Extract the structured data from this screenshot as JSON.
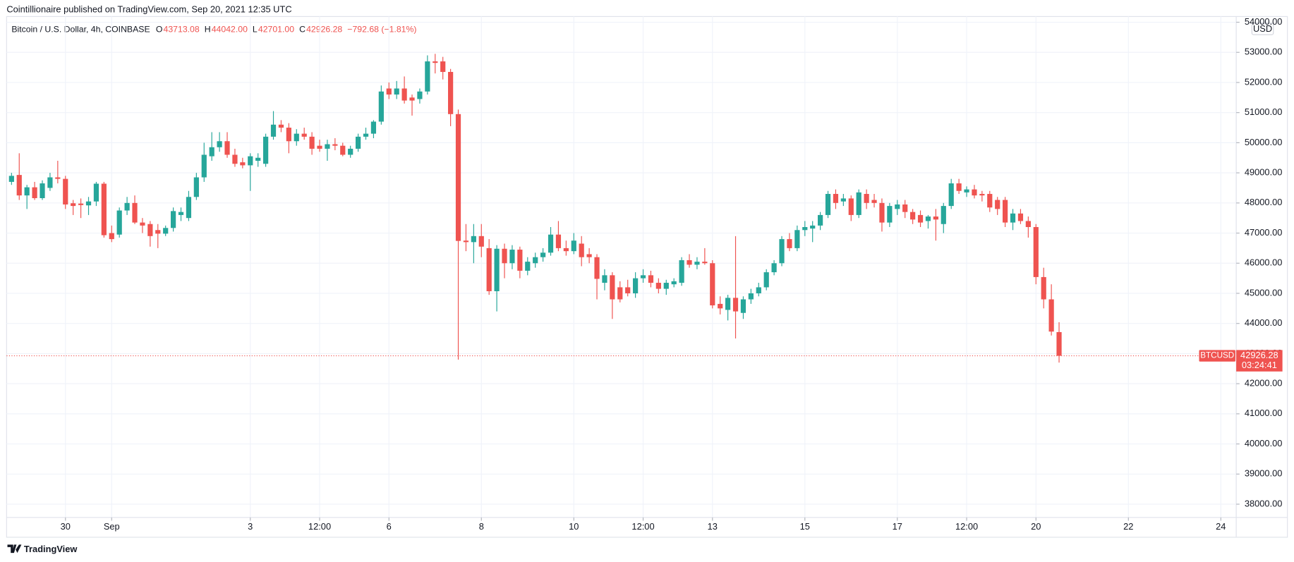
{
  "publisher": "Cointillionaire published on TradingView.com, Sep 20, 2021 12:35 UTC",
  "brand": "TradingView",
  "chart_data": {
    "type": "candlestick",
    "title": "Bitcoin / U.S. Dollar, 4h, COINBASE",
    "ohlc_keys": [
      "O",
      "H",
      "L",
      "C"
    ],
    "ohlc_labels": [
      "43713.08",
      "44042.00",
      "42701.00",
      "42926.28"
    ],
    "change_label": "−792.68 (−1.81%)",
    "currency": "USD",
    "symbol": "BTCUSD",
    "last_label": "42926.28",
    "countdown": "03:24:41",
    "up_color": "#26a69a",
    "down_color": "#ef5350",
    "grid": true,
    "xlim": [
      -0.64,
      159
    ],
    "xticks": [
      {
        "value": 7,
        "label": "30"
      },
      {
        "value": 13,
        "label": "Sep"
      },
      {
        "value": 31,
        "label": "3"
      },
      {
        "value": 40,
        "label": "12:00"
      },
      {
        "value": 49,
        "label": "6"
      },
      {
        "value": 61,
        "label": "8"
      },
      {
        "value": 73,
        "label": "10"
      },
      {
        "value": 82,
        "label": "12:00"
      },
      {
        "value": 91,
        "label": "13"
      },
      {
        "value": 103,
        "label": "15"
      },
      {
        "value": 115,
        "label": "17"
      },
      {
        "value": 124,
        "label": "12:00"
      },
      {
        "value": 133,
        "label": "20"
      },
      {
        "value": 145,
        "label": "22"
      },
      {
        "value": 157,
        "label": "24"
      }
    ],
    "ylim": [
      37560,
      54190
    ],
    "yticks": [
      {
        "value": 38000,
        "label": "38000.00"
      },
      {
        "value": 39000,
        "label": "39000.00"
      },
      {
        "value": 40000,
        "label": "40000.00"
      },
      {
        "value": 41000,
        "label": "41000.00"
      },
      {
        "value": 42000,
        "label": "42000.00"
      },
      {
        "value": 43000,
        "label": "43000.00"
      },
      {
        "value": 44000,
        "label": "44000.00"
      },
      {
        "value": 45000,
        "label": "45000.00"
      },
      {
        "value": 46000,
        "label": "46000.00"
      },
      {
        "value": 47000,
        "label": "47000.00"
      },
      {
        "value": 48000,
        "label": "48000.00"
      },
      {
        "value": 49000,
        "label": "49000.00"
      },
      {
        "value": 50000,
        "label": "50000.00"
      },
      {
        "value": 51000,
        "label": "51000.00"
      },
      {
        "value": 52000,
        "label": "52000.00"
      },
      {
        "value": 53000,
        "label": "53000.00"
      },
      {
        "value": 54000,
        "label": "54000.00"
      }
    ],
    "open": [
      48700,
      48930,
      48250,
      48520,
      48160,
      48500,
      48850,
      48800,
      47990,
      47980,
      47920,
      48050,
      48640,
      47000,
      46950,
      47750,
      48000,
      47350,
      47300,
      47100,
      46980,
      47170,
      47600,
      47500,
      48200,
      48850,
      49550,
      49850,
      50050,
      49600,
      49350,
      49250,
      49400,
      49300,
      50200,
      50600,
      50500,
      50050,
      50300,
      50200,
      49900,
      49800,
      49950,
      49900,
      49600,
      49800,
      50200,
      50300,
      50700,
      51800,
      51600,
      51800,
      51500,
      51450,
      51700,
      52700,
      52700,
      52350,
      50950,
      46750,
      46700,
      46900,
      46500,
      45070,
      46480,
      46000,
      46450,
      45750,
      46000,
      46200,
      46350,
      46950,
      46500,
      46400,
      46650,
      46300,
      46200,
      45350,
      45600,
      45200,
      45200,
      45000,
      45500,
      45600,
      45350,
      45150,
      45300,
      45350,
      46100,
      45950,
      46050,
      46000,
      44650,
      44450,
      44850,
      44350,
      44800,
      45000,
      45200,
      45700,
      46000,
      46800,
      46500,
      47100,
      47150,
      47250,
      47600,
      48300,
      48050,
      48150,
      47600,
      48300,
      48100,
      48000,
      47350,
      47800,
      47950,
      47700,
      47600,
      47400,
      47550,
      47300,
      47900,
      48650,
      48350,
      48450,
      48300,
      48300,
      48100,
      48100,
      47350,
      47650,
      47400,
      47200,
      45540,
      44800,
      43713.08
    ],
    "high": [
      49000,
      49650,
      48600,
      48700,
      48750,
      49000,
      49400,
      48900,
      48100,
      48150,
      48200,
      48700,
      48700,
      47250,
      47850,
      48200,
      48250,
      47500,
      47400,
      47300,
      47250,
      47850,
      47850,
      48400,
      49000,
      50000,
      50350,
      50350,
      50350,
      49800,
      49500,
      49650,
      49650,
      50300,
      51050,
      50750,
      50650,
      50450,
      50500,
      50350,
      50100,
      50100,
      50150,
      50000,
      49900,
      50300,
      50500,
      50750,
      51900,
      52000,
      52050,
      52200,
      51600,
      51800,
      52900,
      52950,
      52850,
      52450,
      51100,
      47300,
      47300,
      47300,
      46800,
      46600,
      46650,
      46600,
      46550,
      46200,
      46350,
      46500,
      47200,
      47400,
      46750,
      47000,
      46900,
      46500,
      46300,
      45800,
      45700,
      45400,
      45450,
      45700,
      45800,
      45750,
      45500,
      45450,
      45500,
      46200,
      46300,
      46200,
      46500,
      46100,
      44900,
      44950,
      46900,
      44900,
      45150,
      45350,
      45800,
      46100,
      46900,
      47000,
      47250,
      47400,
      47400,
      47700,
      48400,
      48450,
      48300,
      48250,
      48450,
      48450,
      48300,
      48150,
      48000,
      48100,
      48100,
      47800,
      47750,
      47600,
      47800,
      48000,
      48800,
      48800,
      48550,
      48600,
      48400,
      48400,
      48200,
      48200,
      47800,
      47800,
      47550,
      47300,
      45850,
      45300,
      44042
    ],
    "low": [
      48600,
      48100,
      47800,
      48100,
      48100,
      48400,
      48650,
      47800,
      47600,
      47500,
      47600,
      47900,
      46850,
      46700,
      46850,
      47600,
      47300,
      47000,
      46550,
      46500,
      46900,
      47050,
      47400,
      47400,
      48100,
      48700,
      49400,
      49700,
      49500,
      49200,
      49150,
      48400,
      49200,
      49200,
      50100,
      50350,
      49650,
      49900,
      50100,
      49600,
      49700,
      49400,
      49750,
      49550,
      49500,
      49700,
      50100,
      50150,
      50600,
      51450,
      51450,
      51300,
      50900,
      51300,
      51600,
      52300,
      52100,
      50550,
      42800,
      46400,
      46000,
      46200,
      44950,
      44400,
      45500,
      45800,
      45500,
      45600,
      45850,
      46050,
      46250,
      46400,
      46250,
      46300,
      45900,
      46000,
      44800,
      45100,
      44150,
      44700,
      44900,
      44850,
      45350,
      45200,
      45000,
      44950,
      45200,
      45250,
      45850,
      45800,
      45950,
      44500,
      44300,
      44100,
      43500,
      44150,
      44650,
      44900,
      45100,
      45600,
      45900,
      46400,
      46400,
      46900,
      46700,
      47100,
      47500,
      47800,
      47900,
      47400,
      47500,
      47800,
      47850,
      47050,
      47200,
      47600,
      47500,
      47300,
      47200,
      47150,
      46750,
      47000,
      47800,
      48300,
      48200,
      48150,
      48050,
      47700,
      47600,
      47200,
      47100,
      47300,
      46850,
      45300,
      44500,
      43600,
      42701
    ],
    "close": [
      48900,
      48250,
      48520,
      48160,
      48650,
      48850,
      48800,
      47950,
      47900,
      47930,
      48050,
      48640,
      46930,
      46800,
      47750,
      48000,
      47350,
      47250,
      46900,
      46980,
      47170,
      47730,
      47700,
      48200,
      48850,
      49600,
      49850,
      50050,
      49600,
      49300,
      49250,
      49550,
      49500,
      50200,
      50600,
      50500,
      50050,
      50300,
      50200,
      49800,
      49800,
      49950,
      49900,
      49600,
      49800,
      50200,
      50300,
      50700,
      51700,
      51600,
      51800,
      51400,
      51400,
      51700,
      52700,
      52650,
      52350,
      50950,
      46740,
      46700,
      46900,
      46550,
      45070,
      46480,
      46000,
      46450,
      45750,
      46050,
      46200,
      46350,
      46950,
      46500,
      46400,
      46750,
      46200,
      46200,
      45480,
      45600,
      44800,
      44800,
      45000,
      45500,
      45600,
      45350,
      45150,
      45350,
      45400,
      46100,
      45950,
      46050,
      46000,
      44600,
      44500,
      44850,
      44400,
      44800,
      45000,
      45200,
      45700,
      46000,
      46800,
      46500,
      47100,
      47200,
      47250,
      47600,
      48300,
      48000,
      48150,
      47600,
      48350,
      48000,
      48000,
      47350,
      47900,
      47950,
      47700,
      47450,
      47350,
      47550,
      47450,
      47900,
      48650,
      48400,
      48450,
      48250,
      48250,
      47850,
      47800,
      47350,
      47650,
      47400,
      47200,
      45540,
      44800,
      43730,
      42926.28
    ]
  }
}
